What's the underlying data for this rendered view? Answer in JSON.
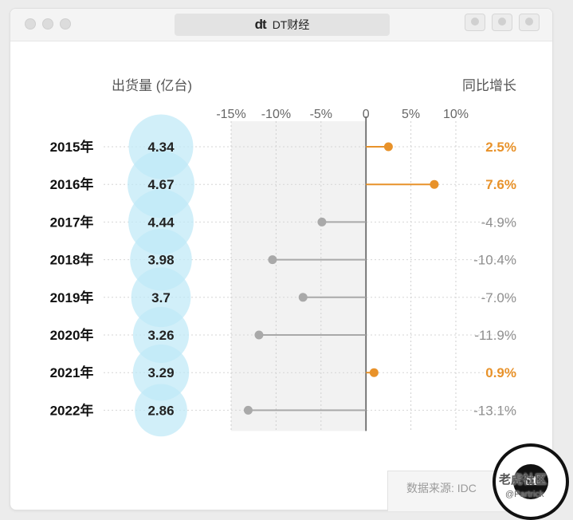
{
  "window": {
    "title_logo": "dt",
    "title": "DT财经"
  },
  "chart_data": {
    "type": "lollipop",
    "left_header": "出货量 (亿台)",
    "right_header": "同比增长",
    "categories": [
      "2015年",
      "2016年",
      "2017年",
      "2018年",
      "2019年",
      "2020年",
      "2021年",
      "2022年"
    ],
    "shipments": [
      4.34,
      4.67,
      4.44,
      3.98,
      3.7,
      3.26,
      3.29,
      2.86
    ],
    "shipment_labels": [
      "4.34",
      "4.67",
      "4.44",
      "3.98",
      "3.7",
      "3.26",
      "3.29",
      "2.86"
    ],
    "growth": [
      2.5,
      7.6,
      -4.9,
      -10.4,
      -7.0,
      -11.9,
      0.9,
      -13.1
    ],
    "growth_labels": [
      "2.5%",
      "7.6%",
      "-4.9%",
      "-10.4%",
      "-7.0%",
      "-11.9%",
      "0.9%",
      "-13.1%"
    ],
    "x_ticks": [
      -15,
      -10,
      -5,
      0,
      5,
      10
    ],
    "x_tick_labels": [
      "-15%",
      "-10%",
      "-5%",
      "0",
      "5%",
      "10%"
    ],
    "xlim": [
      -15,
      10
    ],
    "shaded_range": [
      -15,
      0
    ],
    "colors": {
      "positive": "#e8922a",
      "negative": "#a9a9a9",
      "bubble": "#bfe9f7",
      "shade": "#f2f2f2"
    }
  },
  "source": "数据来源: IDC",
  "watermark": {
    "line1": "老虎社区",
    "line2": "@Partrick"
  }
}
